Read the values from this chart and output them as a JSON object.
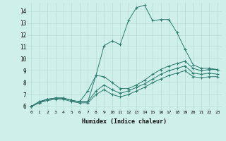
{
  "xlabel": "Humidex (Indice chaleur)",
  "bg_color": "#cff0ea",
  "grid_color": "#b8ddd7",
  "line_color": "#2d7a6e",
  "xlim": [
    -0.5,
    23.5
  ],
  "ylim": [
    5.7,
    14.7
  ],
  "xticks": [
    0,
    1,
    2,
    3,
    4,
    5,
    6,
    7,
    8,
    9,
    10,
    11,
    12,
    13,
    14,
    15,
    16,
    17,
    18,
    19,
    20,
    21,
    22,
    23
  ],
  "yticks": [
    6,
    7,
    8,
    9,
    10,
    11,
    12,
    13,
    14
  ],
  "series": [
    [
      6.0,
      6.4,
      6.6,
      6.7,
      6.7,
      6.5,
      6.4,
      6.4,
      8.6,
      11.1,
      11.5,
      11.2,
      13.2,
      14.3,
      14.5,
      13.2,
      13.3,
      13.3,
      12.2,
      10.8,
      9.5,
      9.2,
      9.2,
      9.1
    ],
    [
      6.0,
      6.4,
      6.6,
      6.7,
      6.7,
      6.5,
      6.4,
      7.3,
      8.6,
      8.5,
      8.0,
      7.5,
      7.5,
      7.8,
      8.2,
      8.7,
      9.1,
      9.4,
      9.6,
      9.8,
      9.2,
      9.0,
      9.1,
      9.1
    ],
    [
      6.0,
      6.3,
      6.6,
      6.7,
      6.7,
      6.5,
      6.4,
      6.4,
      7.3,
      7.8,
      7.4,
      7.1,
      7.3,
      7.6,
      7.9,
      8.3,
      8.7,
      9.0,
      9.2,
      9.4,
      8.8,
      8.7,
      8.8,
      8.7
    ],
    [
      6.0,
      6.3,
      6.5,
      6.6,
      6.6,
      6.4,
      6.3,
      6.3,
      7.0,
      7.4,
      7.0,
      6.8,
      7.0,
      7.3,
      7.6,
      8.0,
      8.3,
      8.6,
      8.8,
      9.0,
      8.5,
      8.4,
      8.5,
      8.5
    ]
  ]
}
